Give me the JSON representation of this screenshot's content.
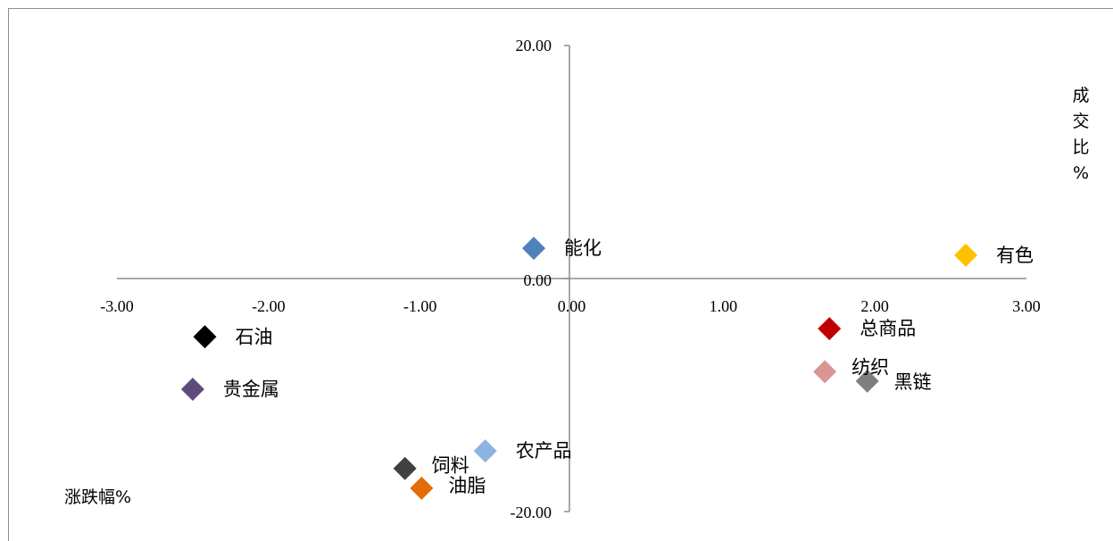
{
  "chart_data": {
    "type": "scatter",
    "xlabel": "涨跌幅%",
    "ylabel": [
      "成",
      "交",
      "比",
      "%"
    ],
    "xlim": [
      -3,
      3
    ],
    "ylim": [
      -20,
      20
    ],
    "x_ticks": [
      "-3.00",
      "-2.00",
      "-1.00",
      "0.00",
      "1.00",
      "2.00",
      "3.00"
    ],
    "y_ticks": [
      "20.00",
      "0.00",
      "-20.00"
    ],
    "grid": false,
    "marker": "diamond",
    "points": [
      {
        "label": "能化",
        "x": -0.25,
        "y": 2.6,
        "color": "#4f81bd"
      },
      {
        "label": "有色",
        "x": 2.6,
        "y": 2.0,
        "color": "#ffc000"
      },
      {
        "label": "石油",
        "x": -2.42,
        "y": -5.0,
        "color": "#000000"
      },
      {
        "label": "贵金属",
        "x": -2.5,
        "y": -9.5,
        "color": "#604a7b"
      },
      {
        "label": "总商品",
        "x": 1.7,
        "y": -4.3,
        "color": "#c00000"
      },
      {
        "label": "纺织",
        "x": 1.67,
        "y": -8.0,
        "color": "#d99694"
      },
      {
        "label": "黑链",
        "x": 1.95,
        "y": -8.8,
        "color": "#7f7f7f"
      },
      {
        "label": "农产品",
        "x": -0.57,
        "y": -14.8,
        "color": "#8db3e2"
      },
      {
        "label": "饲料",
        "x": -1.1,
        "y": -16.3,
        "color": "#404040"
      },
      {
        "label": "油脂",
        "x": -0.99,
        "y": -18.0,
        "color": "#e46c0a"
      }
    ]
  }
}
